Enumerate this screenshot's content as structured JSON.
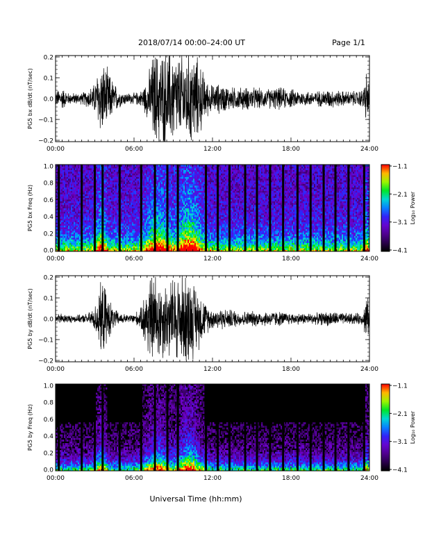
{
  "header": {
    "title": "2018/07/14  00:00–24:00 UT",
    "page": "Page 1/1"
  },
  "xaxis": {
    "label": "Universal Time (hh:mm)",
    "ticks": [
      "00:00",
      "06:00",
      "12:00",
      "18:00",
      "24:00"
    ]
  },
  "colorbar": {
    "label": "Log₁₀ Power",
    "ticks": [
      "−1.1",
      "−2.1",
      "−3.1",
      "−4.1"
    ],
    "range": [
      -4.1,
      -1.1
    ]
  },
  "chart_data": [
    {
      "type": "line",
      "ylabel": "PG5 bx dB/dt (nT/sec)",
      "ylim": [
        -0.2,
        0.2
      ],
      "yticks": [
        "0.2",
        "0.1",
        "0.0",
        "−0.1",
        "−0.2"
      ],
      "xlim": [
        0,
        24
      ],
      "envelope": {
        "hours": [
          0,
          0.5,
          1,
          1.5,
          2,
          2.5,
          3,
          3.2,
          3.5,
          4,
          4.5,
          5,
          5.5,
          6,
          6.5,
          7,
          7.5,
          8,
          8.5,
          9,
          9.5,
          10,
          10.5,
          11,
          11.5,
          12,
          12.5,
          13,
          13.5,
          14,
          15,
          16,
          17,
          18,
          19,
          20,
          21,
          22,
          23,
          23.5,
          23.8,
          24
        ],
        "amplitude": [
          0.04,
          0.06,
          0.03,
          0.03,
          0.03,
          0.05,
          0.08,
          0.15,
          0.2,
          0.15,
          0.08,
          0.04,
          0.03,
          0.03,
          0.04,
          0.1,
          0.25,
          0.25,
          0.25,
          0.25,
          0.22,
          0.25,
          0.25,
          0.2,
          0.1,
          0.07,
          0.08,
          0.07,
          0.06,
          0.06,
          0.06,
          0.05,
          0.06,
          0.05,
          0.04,
          0.04,
          0.05,
          0.04,
          0.04,
          0.05,
          0.15,
          0.06
        ]
      }
    },
    {
      "type": "heatmap",
      "ylabel": "PG5 bx Freq (Hz)",
      "ylim": [
        0,
        1.0
      ],
      "yticks": [
        "1.0",
        "0.8",
        "0.6",
        "0.4",
        "0.2",
        "0.0"
      ],
      "xlim": [
        0,
        24
      ],
      "zlim": [
        -4.1,
        -1.1
      ],
      "gap_hours": [
        0.25,
        2.0,
        3.0,
        3.6,
        4.9,
        6.55,
        7.6,
        8.55,
        9.35,
        11.5,
        12.4,
        13.3,
        14.5,
        15.4,
        16.4,
        17.4,
        18.5,
        19.5,
        20.5,
        21.4,
        22.4,
        23.6
      ]
    },
    {
      "type": "line",
      "ylabel": "PG5 by dB/dt (nT/sec)",
      "ylim": [
        -0.2,
        0.2
      ],
      "yticks": [
        "0.2",
        "0.1",
        "0.0",
        "−0.1",
        "−0.2"
      ],
      "xlim": [
        0,
        24
      ],
      "envelope": {
        "hours": [
          0,
          0.5,
          1,
          1.5,
          2,
          2.5,
          3,
          3.3,
          3.6,
          4,
          4.5,
          5,
          5.5,
          6,
          6.5,
          7,
          7.5,
          8,
          8.5,
          9,
          9.5,
          10,
          10.5,
          11,
          11.5,
          12,
          12.5,
          13,
          13.5,
          14,
          15,
          16,
          17,
          18,
          19,
          20,
          21,
          22,
          23,
          23.5,
          23.8,
          24
        ],
        "amplitude": [
          0.02,
          0.03,
          0.02,
          0.02,
          0.02,
          0.03,
          0.06,
          0.15,
          0.2,
          0.12,
          0.05,
          0.03,
          0.02,
          0.03,
          0.05,
          0.2,
          0.25,
          0.22,
          0.2,
          0.22,
          0.25,
          0.25,
          0.2,
          0.15,
          0.08,
          0.05,
          0.06,
          0.05,
          0.05,
          0.04,
          0.04,
          0.04,
          0.04,
          0.03,
          0.03,
          0.03,
          0.04,
          0.03,
          0.03,
          0.03,
          0.15,
          0.04
        ]
      }
    },
    {
      "type": "heatmap",
      "ylabel": "PG5 by Freq (Hz)",
      "ylim": [
        0,
        1.0
      ],
      "yticks": [
        "1.0",
        "0.8",
        "0.6",
        "0.4",
        "0.2",
        "0.0"
      ],
      "xlim": [
        0,
        24
      ],
      "zlim": [
        -4.1,
        -1.1
      ],
      "gap_hours": [
        0.25,
        2.0,
        3.0,
        3.6,
        4.9,
        6.55,
        7.6,
        8.55,
        9.35,
        11.5,
        12.4,
        13.3,
        14.5,
        15.4,
        16.4,
        17.4,
        18.5,
        19.5,
        20.5,
        21.4,
        22.4,
        23.6
      ]
    }
  ]
}
